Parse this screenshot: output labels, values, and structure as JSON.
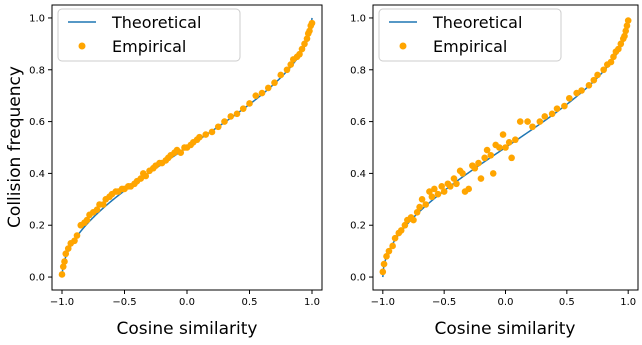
{
  "chart_data": [
    {
      "type": "scatter",
      "xlabel": "Cosine similarity",
      "ylabel": "Collision frequency",
      "xlim": [
        -1.08,
        1.08
      ],
      "ylim": [
        -0.05,
        1.05
      ],
      "xticks": [
        "−1.0",
        "−0.5",
        "0.0",
        "0.5",
        "1.0"
      ],
      "xtick_values": [
        -1.0,
        -0.5,
        0.0,
        0.5,
        1.0
      ],
      "yticks": [
        "0.0",
        "0.2",
        "0.4",
        "0.6",
        "0.8",
        "1.0"
      ],
      "ytick_values": [
        0.0,
        0.2,
        0.4,
        0.6,
        0.8,
        1.0
      ],
      "legend_position": "top-left",
      "grid": false,
      "series": [
        {
          "name": "Theoretical",
          "kind": "line",
          "color": "#1f77b4",
          "formula": "1 - arccos(x)/pi"
        },
        {
          "name": "Empirical",
          "kind": "scatter",
          "color": "#ffa500",
          "points": [
            [
              -1.0,
              0.01
            ],
            [
              -0.99,
              0.04
            ],
            [
              -0.98,
              0.06
            ],
            [
              -0.97,
              0.09
            ],
            [
              -0.95,
              0.11
            ],
            [
              -0.93,
              0.13
            ],
            [
              -0.9,
              0.14
            ],
            [
              -0.88,
              0.16
            ],
            [
              -0.85,
              0.2
            ],
            [
              -0.82,
              0.21
            ],
            [
              -0.8,
              0.22
            ],
            [
              -0.78,
              0.24
            ],
            [
              -0.75,
              0.25
            ],
            [
              -0.72,
              0.26
            ],
            [
              -0.7,
              0.28
            ],
            [
              -0.67,
              0.28
            ],
            [
              -0.65,
              0.3
            ],
            [
              -0.62,
              0.31
            ],
            [
              -0.6,
              0.32
            ],
            [
              -0.57,
              0.33
            ],
            [
              -0.55,
              0.33
            ],
            [
              -0.52,
              0.34
            ],
            [
              -0.5,
              0.34
            ],
            [
              -0.47,
              0.35
            ],
            [
              -0.45,
              0.35
            ],
            [
              -0.42,
              0.36
            ],
            [
              -0.4,
              0.37
            ],
            [
              -0.37,
              0.38
            ],
            [
              -0.35,
              0.4
            ],
            [
              -0.33,
              0.39
            ],
            [
              -0.3,
              0.41
            ],
            [
              -0.27,
              0.42
            ],
            [
              -0.25,
              0.43
            ],
            [
              -0.22,
              0.44
            ],
            [
              -0.2,
              0.44
            ],
            [
              -0.17,
              0.45
            ],
            [
              -0.15,
              0.46
            ],
            [
              -0.13,
              0.47
            ],
            [
              -0.1,
              0.48
            ],
            [
              -0.08,
              0.49
            ],
            [
              -0.05,
              0.48
            ],
            [
              -0.02,
              0.5
            ],
            [
              0.0,
              0.5
            ],
            [
              0.03,
              0.51
            ],
            [
              0.05,
              0.52
            ],
            [
              0.08,
              0.53
            ],
            [
              0.1,
              0.54
            ],
            [
              0.15,
              0.55
            ],
            [
              0.2,
              0.56
            ],
            [
              0.25,
              0.58
            ],
            [
              0.3,
              0.6
            ],
            [
              0.35,
              0.62
            ],
            [
              0.4,
              0.63
            ],
            [
              0.45,
              0.65
            ],
            [
              0.5,
              0.67
            ],
            [
              0.55,
              0.7
            ],
            [
              0.6,
              0.71
            ],
            [
              0.65,
              0.73
            ],
            [
              0.7,
              0.75
            ],
            [
              0.75,
              0.78
            ],
            [
              0.8,
              0.8
            ],
            [
              0.83,
              0.82
            ],
            [
              0.85,
              0.84
            ],
            [
              0.88,
              0.85
            ],
            [
              0.9,
              0.86
            ],
            [
              0.92,
              0.88
            ],
            [
              0.94,
              0.9
            ],
            [
              0.96,
              0.92
            ],
            [
              0.97,
              0.94
            ],
            [
              0.98,
              0.95
            ],
            [
              0.99,
              0.97
            ],
            [
              1.0,
              0.98
            ]
          ]
        }
      ]
    },
    {
      "type": "scatter",
      "xlabel": "Cosine similarity",
      "ylabel": "",
      "xlim": [
        -1.08,
        1.08
      ],
      "ylim": [
        -0.05,
        1.05
      ],
      "xticks": [
        "−1.0",
        "−0.5",
        "0.0",
        "0.5",
        "1.0"
      ],
      "xtick_values": [
        -1.0,
        -0.5,
        0.0,
        0.5,
        1.0
      ],
      "yticks": [
        "0.0",
        "0.2",
        "0.4",
        "0.6",
        "0.8",
        "1.0"
      ],
      "ytick_values": [
        0.0,
        0.2,
        0.4,
        0.6,
        0.8,
        1.0
      ],
      "legend_position": "top-left",
      "grid": false,
      "series": [
        {
          "name": "Theoretical",
          "kind": "line",
          "color": "#1f77b4",
          "formula": "1 - arccos(x)/pi"
        },
        {
          "name": "Empirical",
          "kind": "scatter",
          "color": "#ffa500",
          "points": [
            [
              -1.0,
              0.02
            ],
            [
              -0.99,
              0.05
            ],
            [
              -0.97,
              0.08
            ],
            [
              -0.95,
              0.1
            ],
            [
              -0.92,
              0.12
            ],
            [
              -0.9,
              0.15
            ],
            [
              -0.87,
              0.17
            ],
            [
              -0.85,
              0.18
            ],
            [
              -0.82,
              0.2
            ],
            [
              -0.8,
              0.22
            ],
            [
              -0.77,
              0.23
            ],
            [
              -0.75,
              0.22
            ],
            [
              -0.72,
              0.25
            ],
            [
              -0.7,
              0.27
            ],
            [
              -0.68,
              0.3
            ],
            [
              -0.65,
              0.28
            ],
            [
              -0.62,
              0.33
            ],
            [
              -0.6,
              0.31
            ],
            [
              -0.58,
              0.34
            ],
            [
              -0.55,
              0.32
            ],
            [
              -0.52,
              0.35
            ],
            [
              -0.5,
              0.33
            ],
            [
              -0.47,
              0.36
            ],
            [
              -0.45,
              0.35
            ],
            [
              -0.42,
              0.38
            ],
            [
              -0.4,
              0.36
            ],
            [
              -0.37,
              0.41
            ],
            [
              -0.35,
              0.4
            ],
            [
              -0.33,
              0.33
            ],
            [
              -0.3,
              0.34
            ],
            [
              -0.27,
              0.43
            ],
            [
              -0.25,
              0.42
            ],
            [
              -0.22,
              0.44
            ],
            [
              -0.2,
              0.38
            ],
            [
              -0.17,
              0.46
            ],
            [
              -0.15,
              0.49
            ],
            [
              -0.12,
              0.47
            ],
            [
              -0.1,
              0.4
            ],
            [
              -0.08,
              0.51
            ],
            [
              -0.05,
              0.5
            ],
            [
              -0.02,
              0.55
            ],
            [
              0.0,
              0.5
            ],
            [
              0.03,
              0.52
            ],
            [
              0.05,
              0.46
            ],
            [
              0.08,
              0.53
            ],
            [
              0.12,
              0.6
            ],
            [
              0.18,
              0.6
            ],
            [
              0.22,
              0.58
            ],
            [
              0.28,
              0.6
            ],
            [
              0.32,
              0.62
            ],
            [
              0.38,
              0.63
            ],
            [
              0.42,
              0.65
            ],
            [
              0.48,
              0.66
            ],
            [
              0.52,
              0.69
            ],
            [
              0.58,
              0.71
            ],
            [
              0.62,
              0.72
            ],
            [
              0.68,
              0.74
            ],
            [
              0.72,
              0.76
            ],
            [
              0.75,
              0.78
            ],
            [
              0.8,
              0.8
            ],
            [
              0.83,
              0.82
            ],
            [
              0.86,
              0.83
            ],
            [
              0.88,
              0.85
            ],
            [
              0.9,
              0.87
            ],
            [
              0.92,
              0.88
            ],
            [
              0.94,
              0.9
            ],
            [
              0.96,
              0.92
            ],
            [
              0.97,
              0.93
            ],
            [
              0.98,
              0.95
            ],
            [
              0.99,
              0.97
            ],
            [
              1.0,
              0.99
            ]
          ]
        }
      ]
    }
  ]
}
